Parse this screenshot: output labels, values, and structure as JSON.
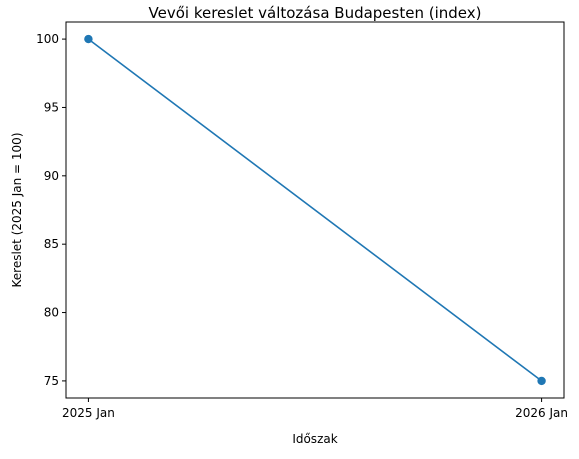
{
  "chart_data": {
    "type": "line",
    "title": "Vevői kereslet változása Budapesten (index)",
    "xlabel": "Időszak",
    "ylabel": "Kereslet (2025 Jan = 100)",
    "categories": [
      "2025 Jan",
      "2026 Jan"
    ],
    "series": [
      {
        "values": [
          100,
          75
        ],
        "color": "#1f77b4",
        "marker": "circle"
      }
    ],
    "ylim": [
      73.75,
      101.25
    ],
    "yticks": [
      75,
      80,
      85,
      90,
      95,
      100
    ],
    "grid": false,
    "legend": false
  }
}
